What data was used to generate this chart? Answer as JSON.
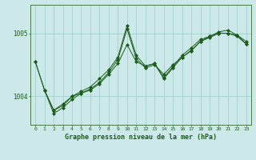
{
  "title": "Graphe pression niveau de la mer (hPa)",
  "background_color": "#cce8e8",
  "plot_bg_color": "#cce8e8",
  "grid_color": "#99cccc",
  "line_color": "#1a5c1a",
  "marker_color": "#1a5c1a",
  "xlim": [
    -0.5,
    23.5
  ],
  "ylim": [
    1003.55,
    1005.45
  ],
  "yticks": [
    1004,
    1005
  ],
  "xticks": [
    0,
    1,
    2,
    3,
    4,
    5,
    6,
    7,
    8,
    9,
    10,
    11,
    12,
    13,
    14,
    15,
    16,
    17,
    18,
    19,
    20,
    21,
    22,
    23
  ],
  "series1_x": [
    0,
    1,
    2,
    3,
    4,
    5,
    6,
    7,
    8,
    9,
    10,
    11,
    12,
    13,
    14,
    15,
    16,
    17,
    18,
    19,
    20,
    21,
    22,
    23
  ],
  "series1_y": [
    1004.55,
    1004.1,
    1003.78,
    1003.85,
    1004.0,
    1004.05,
    1004.12,
    1004.22,
    1004.38,
    1004.58,
    1005.07,
    1004.6,
    1004.45,
    1004.5,
    1004.35,
    1004.5,
    1004.62,
    1004.72,
    1004.87,
    1004.93,
    1005.0,
    1005.0,
    1004.97,
    1004.83
  ],
  "series2_x": [
    0,
    1,
    2,
    3,
    4,
    5,
    6,
    7,
    8,
    9,
    10,
    11,
    12,
    13,
    14,
    15,
    16,
    17,
    18,
    19,
    20,
    21,
    22,
    23
  ],
  "series2_y": [
    1004.55,
    1004.1,
    1003.78,
    1003.88,
    1004.0,
    1004.08,
    1004.15,
    1004.28,
    1004.42,
    1004.62,
    1005.12,
    1004.65,
    1004.48,
    1004.52,
    1004.3,
    1004.47,
    1004.65,
    1004.77,
    1004.9,
    1004.95,
    1005.02,
    1005.05,
    1004.97,
    1004.87
  ],
  "series3_x": [
    1,
    2,
    3,
    4,
    5,
    6,
    7,
    8,
    9,
    10,
    11,
    12,
    13,
    14,
    15,
    16,
    17,
    18,
    19,
    20,
    21,
    22,
    23
  ],
  "series3_y": [
    1004.1,
    1003.73,
    1003.82,
    1003.95,
    1004.05,
    1004.1,
    1004.2,
    1004.35,
    1004.52,
    1004.82,
    1004.55,
    1004.48,
    1004.52,
    1004.28,
    1004.45,
    1004.62,
    1004.73,
    1004.87,
    1004.95,
    1005.0,
    1005.0,
    1004.95,
    1004.83
  ]
}
